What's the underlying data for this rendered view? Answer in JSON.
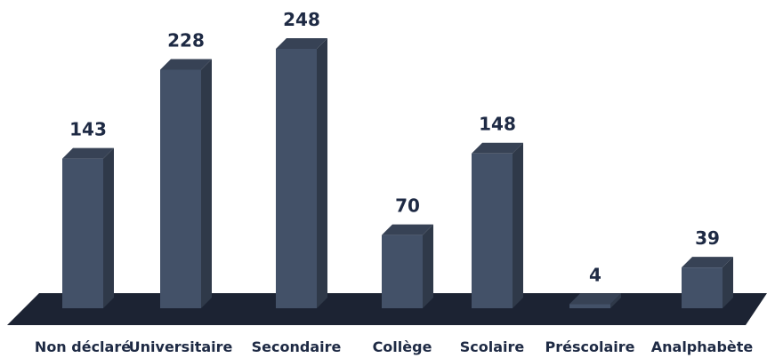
{
  "chart_data": {
    "type": "bar3d",
    "categories": [
      "Non déclaré",
      "Universitaire",
      "Secondaire",
      "Collège",
      "Scolaire",
      "Préscolaire",
      "Analphabète"
    ],
    "values": [
      143,
      228,
      248,
      70,
      148,
      4,
      39
    ],
    "color": "#435168"
  }
}
